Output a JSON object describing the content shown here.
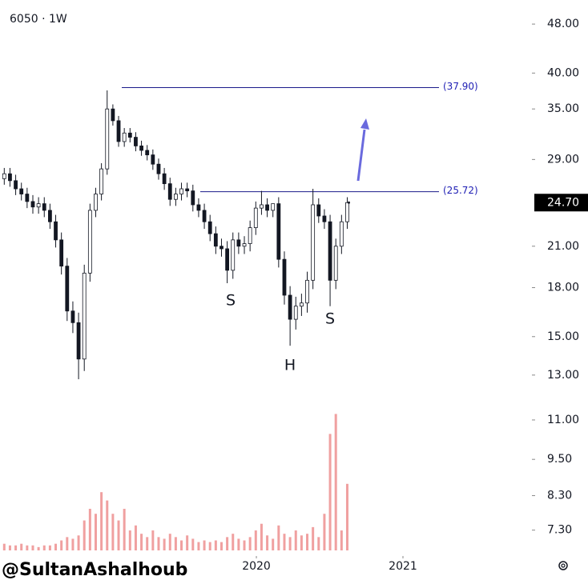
{
  "chart_data": {
    "type": "candlestick",
    "title": "6050 · 1W",
    "x": [
      2018.28,
      2018.319,
      2018.358,
      2018.397,
      2018.436,
      2018.475,
      2018.514,
      2018.553,
      2018.592,
      2018.631,
      2018.67,
      2018.709,
      2018.748,
      2018.787,
      2018.826,
      2018.865,
      2018.904,
      2018.943,
      2018.982,
      2019.021,
      2019.06,
      2019.099,
      2019.138,
      2019.177,
      2019.216,
      2019.255,
      2019.294,
      2019.333,
      2019.372,
      2019.411,
      2019.45,
      2019.489,
      2019.528,
      2019.567,
      2019.606,
      2019.645,
      2019.684,
      2019.723,
      2019.762,
      2019.801,
      2019.84,
      2019.879,
      2019.918,
      2019.957,
      2019.996,
      2020.035,
      2020.074,
      2020.113,
      2020.152,
      2020.191,
      2020.23,
      2020.269,
      2020.308,
      2020.347,
      2020.386,
      2020.425,
      2020.464,
      2020.503,
      2020.542,
      2020.581,
      2020.62
    ],
    "open": [
      27,
      27.5,
      26.8,
      26,
      25.5,
      24.8,
      24.3,
      24.6,
      24,
      23,
      21.5,
      19.5,
      16.5,
      15.8,
      13.8,
      19,
      24,
      25.5,
      28,
      35,
      33.5,
      31,
      32,
      31.5,
      30.5,
      30,
      29.5,
      28.5,
      27.5,
      26.5,
      25,
      25.5,
      26,
      25.8,
      24.5,
      24,
      23,
      22,
      21,
      20.8,
      19.2,
      21.5,
      21,
      21.2,
      22.5,
      24.2,
      24.5,
      24,
      24.6,
      20,
      17.5,
      16,
      16.8,
      17,
      18.5,
      24.5,
      23.5,
      23,
      18.5,
      21,
      23
    ],
    "high": [
      28.1,
      28.1,
      27.4,
      26.6,
      26.1,
      25.4,
      25.2,
      25.2,
      24.6,
      23.6,
      22.1,
      20.1,
      17.1,
      16.4,
      19.6,
      24.6,
      26.1,
      28.6,
      37.5,
      35.6,
      34.1,
      32.6,
      32.6,
      32.1,
      31.1,
      30.6,
      30.1,
      29.1,
      28.1,
      27.1,
      26.1,
      26.6,
      26.6,
      26.4,
      25.1,
      24.6,
      23.6,
      22.6,
      21.6,
      21.4,
      22.1,
      22.1,
      21.8,
      23.1,
      24.8,
      25.8,
      25.1,
      24.6,
      25.2,
      20.6,
      18.1,
      17.4,
      17.6,
      19.1,
      26,
      25.1,
      24.1,
      23.6,
      21.6,
      23.6,
      25.2
    ],
    "low": [
      26.4,
      26.2,
      25.4,
      24.9,
      24.2,
      23.7,
      23.7,
      23.4,
      22.4,
      20.9,
      18.9,
      15.9,
      15.2,
      12.8,
      13.2,
      18.4,
      23.4,
      24.9,
      27.4,
      32.9,
      30.4,
      30.4,
      30.9,
      29.9,
      29.4,
      28.9,
      27.9,
      26.9,
      25.9,
      24.4,
      24.4,
      24.9,
      25.2,
      23.9,
      23.4,
      22.4,
      21.4,
      20.4,
      20.2,
      18.3,
      18.6,
      20.4,
      20.4,
      20.6,
      21.9,
      23.6,
      23.4,
      23.4,
      19.4,
      16.9,
      14.5,
      15.4,
      16.2,
      16.4,
      17.9,
      22.9,
      22.4,
      16.8,
      17.9,
      20.4,
      22.4
    ],
    "close": [
      27.5,
      26.8,
      26,
      25.5,
      24.8,
      24.3,
      24.6,
      24,
      23,
      21.5,
      19.5,
      16.5,
      15.8,
      13.8,
      19,
      24,
      25.5,
      28,
      35,
      33.5,
      31,
      32,
      31.5,
      30.5,
      30,
      29.5,
      28.5,
      27.5,
      26.5,
      25,
      25.5,
      26,
      25.8,
      24.5,
      24,
      23,
      22,
      21,
      20.8,
      19.2,
      21.5,
      21,
      21.2,
      22.5,
      24.2,
      24.5,
      24,
      24.6,
      20,
      17.5,
      16,
      16.8,
      17,
      18.5,
      24.5,
      23.5,
      23,
      18.5,
      21,
      23,
      24.7
    ],
    "volume": {
      "axis": "y2",
      "color": "#f0a0a0",
      "values": [
        4,
        3,
        3,
        4,
        3,
        3,
        2,
        3,
        3,
        4,
        6,
        8,
        7,
        9,
        18,
        25,
        22,
        35,
        30,
        22,
        18,
        25,
        12,
        15,
        10,
        8,
        12,
        8,
        7,
        10,
        8,
        6,
        9,
        7,
        5,
        6,
        5,
        6,
        5,
        8,
        10,
        7,
        6,
        8,
        12,
        16,
        9,
        7,
        15,
        10,
        8,
        12,
        9,
        10,
        14,
        8,
        22,
        70,
        82,
        12,
        40
      ]
    },
    "y2lim": [
      0,
      100
    ],
    "log_scale": true,
    "ylim": [
      6.63,
      52.5
    ],
    "yticks": [
      {
        "value": 48,
        "label": "48.00"
      },
      {
        "value": 40,
        "label": "40.00"
      },
      {
        "value": 35,
        "label": "35.00"
      },
      {
        "value": 29,
        "label": "29.00"
      },
      {
        "value": 21,
        "label": "21.00"
      },
      {
        "value": 18,
        "label": "18.00"
      },
      {
        "value": 15,
        "label": "15.00"
      },
      {
        "value": 13,
        "label": "13.00"
      },
      {
        "value": 11,
        "label": "11.00"
      },
      {
        "value": 9.5,
        "label": "9.50"
      },
      {
        "value": 8.3,
        "label": "8.30"
      },
      {
        "value": 7.3,
        "label": "7.30"
      }
    ],
    "last_price": {
      "value": 24.7,
      "label": "24.70"
    },
    "xlim": [
      2018.251,
      2021.858
    ],
    "xticks": [
      2020,
      2021
    ],
    "levels": [
      {
        "value": 37.9,
        "label": "(37.90)"
      },
      {
        "value": 25.72,
        "label": "(25.72)"
      }
    ],
    "pattern_labels": [
      "S",
      "H",
      "S"
    ],
    "watermark": "@SultanAshalhoub"
  }
}
